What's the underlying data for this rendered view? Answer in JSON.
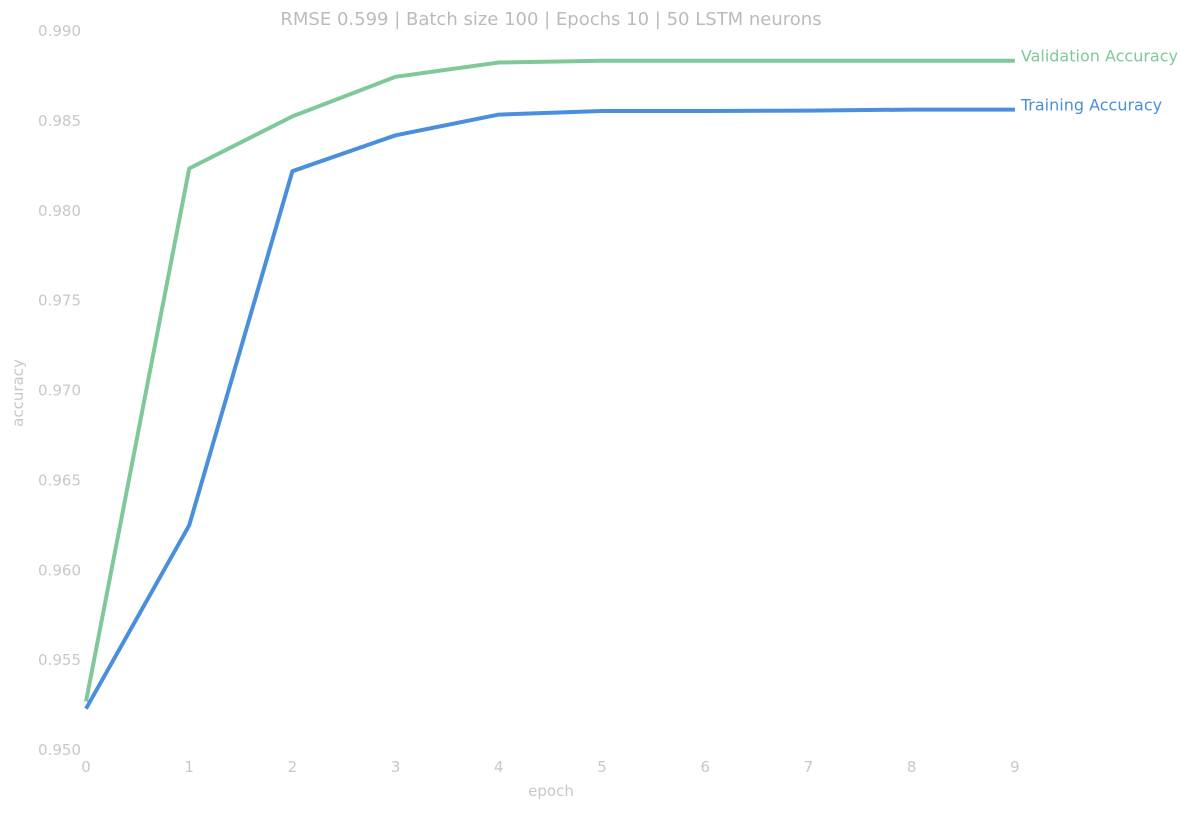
{
  "chart_data": {
    "type": "line",
    "title": "RMSE 0.599 | Batch size 100 | Epochs 10 |  50 LSTM neurons",
    "xlabel": "epoch",
    "ylabel": "accuracy",
    "x": [
      0,
      1,
      2,
      3,
      4,
      5,
      6,
      7,
      8,
      9
    ],
    "xticks": [
      0,
      1,
      2,
      3,
      4,
      5,
      6,
      7,
      8,
      9
    ],
    "yticks": [
      "0.950",
      "0.955",
      "0.960",
      "0.965",
      "0.970",
      "0.975",
      "0.980",
      "0.985",
      "0.990"
    ],
    "xlim": [
      0,
      10.6
    ],
    "ylim": [
      0.95,
      0.99
    ],
    "grid": false,
    "legend": "labels at line ends, right",
    "series": [
      {
        "name": "Validation Accuracy",
        "color": "#7fc898",
        "values": [
          0.9527,
          0.98235,
          0.98525,
          0.98745,
          0.98825,
          0.98835,
          0.98835,
          0.98835,
          0.98835,
          0.98835
        ]
      },
      {
        "name": "Training Accuracy",
        "color": "#4a8fdb",
        "values": [
          0.9523,
          0.9625,
          0.9822,
          0.9842,
          0.98535,
          0.98555,
          0.98555,
          0.98557,
          0.98563,
          0.98563
        ]
      }
    ]
  }
}
